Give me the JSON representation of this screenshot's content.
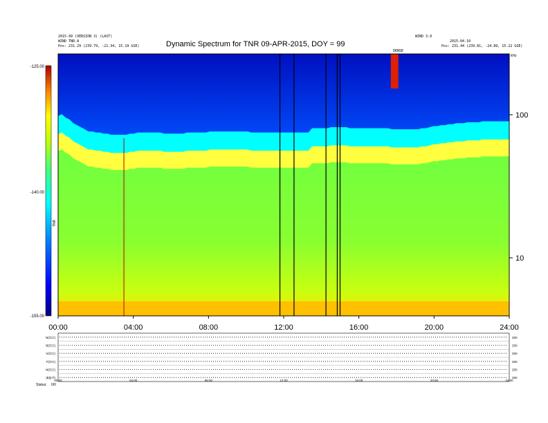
{
  "chart_data": {
    "type": "heatmap",
    "title": "Dynamic Spectrum for TNR 09-APR-2015, DOY = 99",
    "header_left": [
      "2015-99 (VERSION 3) (LAST)",
      "WIND TNR-A",
      "Pos:  231.29 (239.79, -21.34, 15.19 GSE)"
    ],
    "header_right": [
      "WIND 3.0",
      "2015-04-10",
      "Pos:  231.44 (239.81, -24.89, 15.22 GSE)"
    ],
    "top_label": "DENSE",
    "colorbar": {
      "ticks": [
        "-125.00",
        "-140.00",
        "-155.00"
      ],
      "label": "TNR",
      "range": [
        -155,
        -125
      ]
    },
    "y_right": {
      "unit": "kHz",
      "scale": "log",
      "ticks": [
        "100",
        "10"
      ],
      "range": [
        4,
        245
      ]
    },
    "x": {
      "ticks": [
        "00:00",
        "04:00",
        "08:00",
        "12:00",
        "16:00",
        "20:00",
        "24:00"
      ],
      "range": [
        0,
        24
      ]
    },
    "series": [
      {
        "values": [
          74,
          76,
          72,
          70,
          66,
          64,
          62,
          60,
          58,
          58,
          57,
          57,
          56,
          56,
          55,
          55,
          55,
          55,
          55,
          56,
          56,
          57,
          57,
          57,
          57,
          57,
          57,
          57,
          56,
          56,
          56,
          56,
          56,
          56,
          57,
          57,
          57,
          57,
          57,
          57,
          58,
          58,
          58,
          58,
          58,
          58,
          58,
          58,
          58,
          58,
          58,
          57,
          57,
          57,
          57,
          57,
          57,
          57,
          57,
          57,
          57,
          57,
          57,
          57,
          57,
          57,
          57,
          61,
          61,
          61,
          61,
          61,
          62,
          62,
          62,
          62,
          62,
          61,
          61,
          61,
          61,
          61,
          61,
          61,
          61,
          61,
          61,
          61,
          60,
          60,
          60,
          60,
          60,
          60,
          60,
          60,
          61,
          61,
          62,
          63,
          63,
          64,
          64,
          65,
          65,
          66,
          66,
          66,
          67,
          67,
          67,
          67,
          68,
          68,
          68,
          68,
          68,
          68,
          68,
          68
        ]
      }
    ],
    "dense_line": {
      "x_start": 17.7,
      "x_end": 18.1
    },
    "vertical_lines": [
      {
        "x": 3.5,
        "color": "#c00000"
      },
      {
        "x": 11.8,
        "color": "#000000"
      },
      {
        "x": 12.55,
        "color": "#000000"
      },
      {
        "x": 14.25,
        "color": "#000000"
      },
      {
        "x": 14.85,
        "color": "#000000"
      },
      {
        "x": 15.0,
        "color": "#000000"
      }
    ],
    "bottom_panels": {
      "left_labels": [
        "N(/CC)",
        "B(/CC)",
        "V(/CC)",
        "T(/CC)",
        "N(/CC)",
        "|B|(nT)"
      ],
      "right_labels": [
        "250",
        "250",
        "250",
        "250",
        "250",
        "250"
      ],
      "x_ticks": [
        "00:00",
        "04:00",
        "08:00",
        "12:00",
        "16:00",
        "20:00",
        "24:00"
      ],
      "footer_left": "Status:",
      "footer_value": "0/0"
    },
    "colors": {
      "low": "#00007f",
      "mid": "#00ffff",
      "high": "#ffff00",
      "max": "#b00000"
    }
  }
}
